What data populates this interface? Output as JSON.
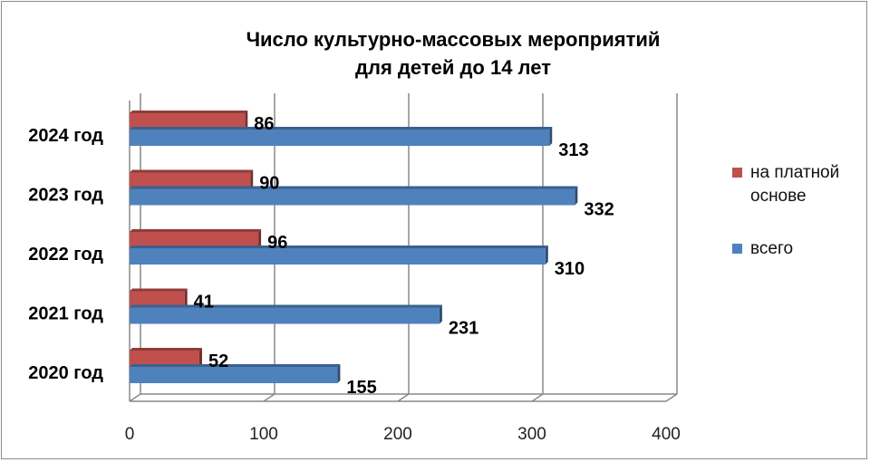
{
  "chart_data": {
    "type": "bar",
    "orientation": "horizontal",
    "title": [
      "Число культурно-массовых мероприятий",
      "для детей до 14 лет"
    ],
    "categories": [
      "2020 год",
      "2021 год",
      "2022 год",
      "2023 год",
      "2024 год"
    ],
    "series": [
      {
        "name": "на платной основе",
        "color": "#c0504d",
        "values": [
          52,
          41,
          96,
          90,
          86
        ]
      },
      {
        "name": "всего",
        "color": "#4f81bd",
        "values": [
          155,
          231,
          310,
          332,
          313
        ]
      }
    ],
    "xlim": [
      0,
      400
    ],
    "xticks": [
      0,
      100,
      200,
      300,
      400
    ],
    "grid": true,
    "legend_position": "right",
    "data_labels": true
  }
}
